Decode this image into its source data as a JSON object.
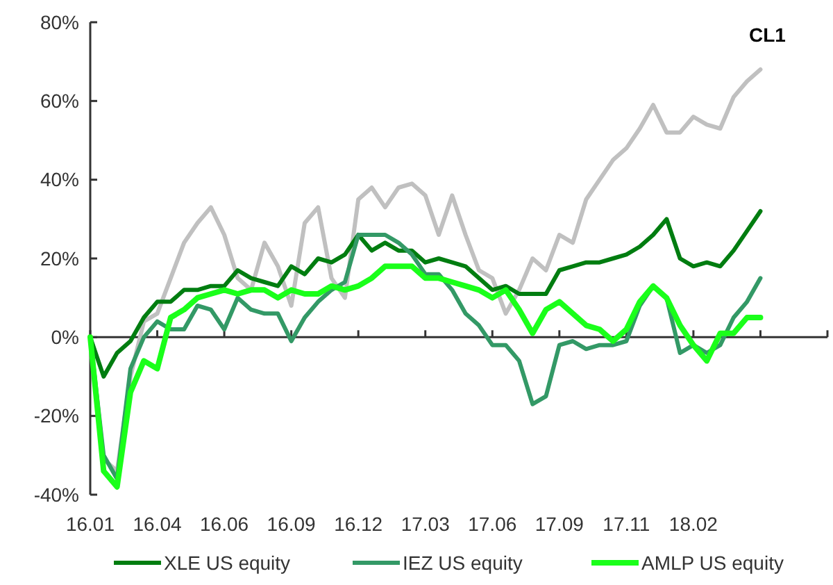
{
  "chart_data": {
    "type": "line",
    "legend": "bottom",
    "line_style": "solid",
    "marker": "none",
    "categories": [
      "16.01",
      null,
      null,
      null,
      null,
      "16.04",
      null,
      null,
      null,
      null,
      "16.06",
      null,
      null,
      null,
      null,
      "16.09",
      null,
      null,
      null,
      null,
      "16.12",
      null,
      null,
      null,
      null,
      "17.03",
      null,
      null,
      null,
      null,
      "17.06",
      null,
      null,
      null,
      null,
      "17.09",
      null,
      null,
      null,
      null,
      "17.11",
      null,
      null,
      null,
      null,
      "18.02",
      null,
      null,
      null,
      null,
      null,
      null,
      null,
      null,
      null,
      null
    ],
    "ylim": [
      -40,
      80
    ],
    "yticks": [
      {
        "value": -40,
        "label": "-40%"
      },
      {
        "value": -20,
        "label": "-20%"
      },
      {
        "value": 0,
        "label": "0%"
      },
      {
        "value": 20,
        "label": "20%"
      },
      {
        "value": 40,
        "label": "40%"
      },
      {
        "value": 60,
        "label": "60%"
      },
      {
        "value": 80,
        "label": "80%"
      }
    ],
    "series": [
      {
        "name": "CL1",
        "color": "#c0c0c0",
        "values": [
          0,
          -31,
          -34,
          -10,
          4,
          6,
          15,
          24,
          29,
          33,
          26,
          15,
          12,
          24,
          18,
          8,
          29,
          33,
          15,
          10,
          35,
          38,
          33,
          38,
          39,
          36,
          26,
          36,
          26,
          17,
          15,
          6,
          12,
          20,
          17,
          26,
          24,
          35,
          40,
          45,
          48,
          53,
          59,
          52,
          52,
          56,
          54,
          53,
          61,
          65,
          68,
          null,
          null,
          null,
          null,
          null
        ]
      },
      {
        "name": "XLE US equity",
        "color": "#007d10",
        "values": [
          0,
          -10,
          -4,
          -1,
          5,
          9,
          9,
          12,
          12,
          13,
          13,
          17,
          15,
          14,
          13,
          18,
          16,
          20,
          19,
          21,
          26,
          22,
          24,
          22,
          22,
          19,
          20,
          19,
          18,
          15,
          12,
          13,
          11,
          11,
          11,
          17,
          18,
          19,
          19,
          20,
          21,
          23,
          26,
          30,
          20,
          18,
          19,
          18,
          22,
          27,
          32,
          null,
          null,
          null,
          null,
          null
        ]
      },
      {
        "name": "IEZ US equity",
        "color": "#339966",
        "values": [
          0,
          -30,
          -36,
          -8,
          0,
          4,
          2,
          2,
          8,
          7,
          2,
          10,
          7,
          6,
          6,
          -1,
          5,
          9,
          12,
          14,
          26,
          26,
          26,
          24,
          21,
          16,
          16,
          12,
          6,
          3,
          -2,
          -2,
          -6,
          -17,
          -15,
          -2,
          -1,
          -3,
          -2,
          -2,
          -1,
          8,
          13,
          10,
          -4,
          -2,
          -4,
          -2,
          5,
          9,
          15,
          null,
          null,
          null,
          null,
          null
        ]
      },
      {
        "name": "AMLP US equity",
        "color": "#1aff1a",
        "values": [
          0,
          -34,
          -38,
          -14,
          -6,
          -8,
          5,
          7,
          10,
          11,
          12,
          11,
          12,
          12,
          10,
          12,
          11,
          11,
          13,
          12,
          13,
          15,
          18,
          18,
          18,
          15,
          15,
          14,
          13,
          12,
          10,
          12,
          7,
          1,
          7,
          9,
          6,
          3,
          2,
          -1,
          2,
          9,
          13,
          10,
          3,
          -2,
          -6,
          1,
          1,
          5,
          5,
          null,
          null,
          null,
          null,
          null
        ]
      }
    ]
  }
}
